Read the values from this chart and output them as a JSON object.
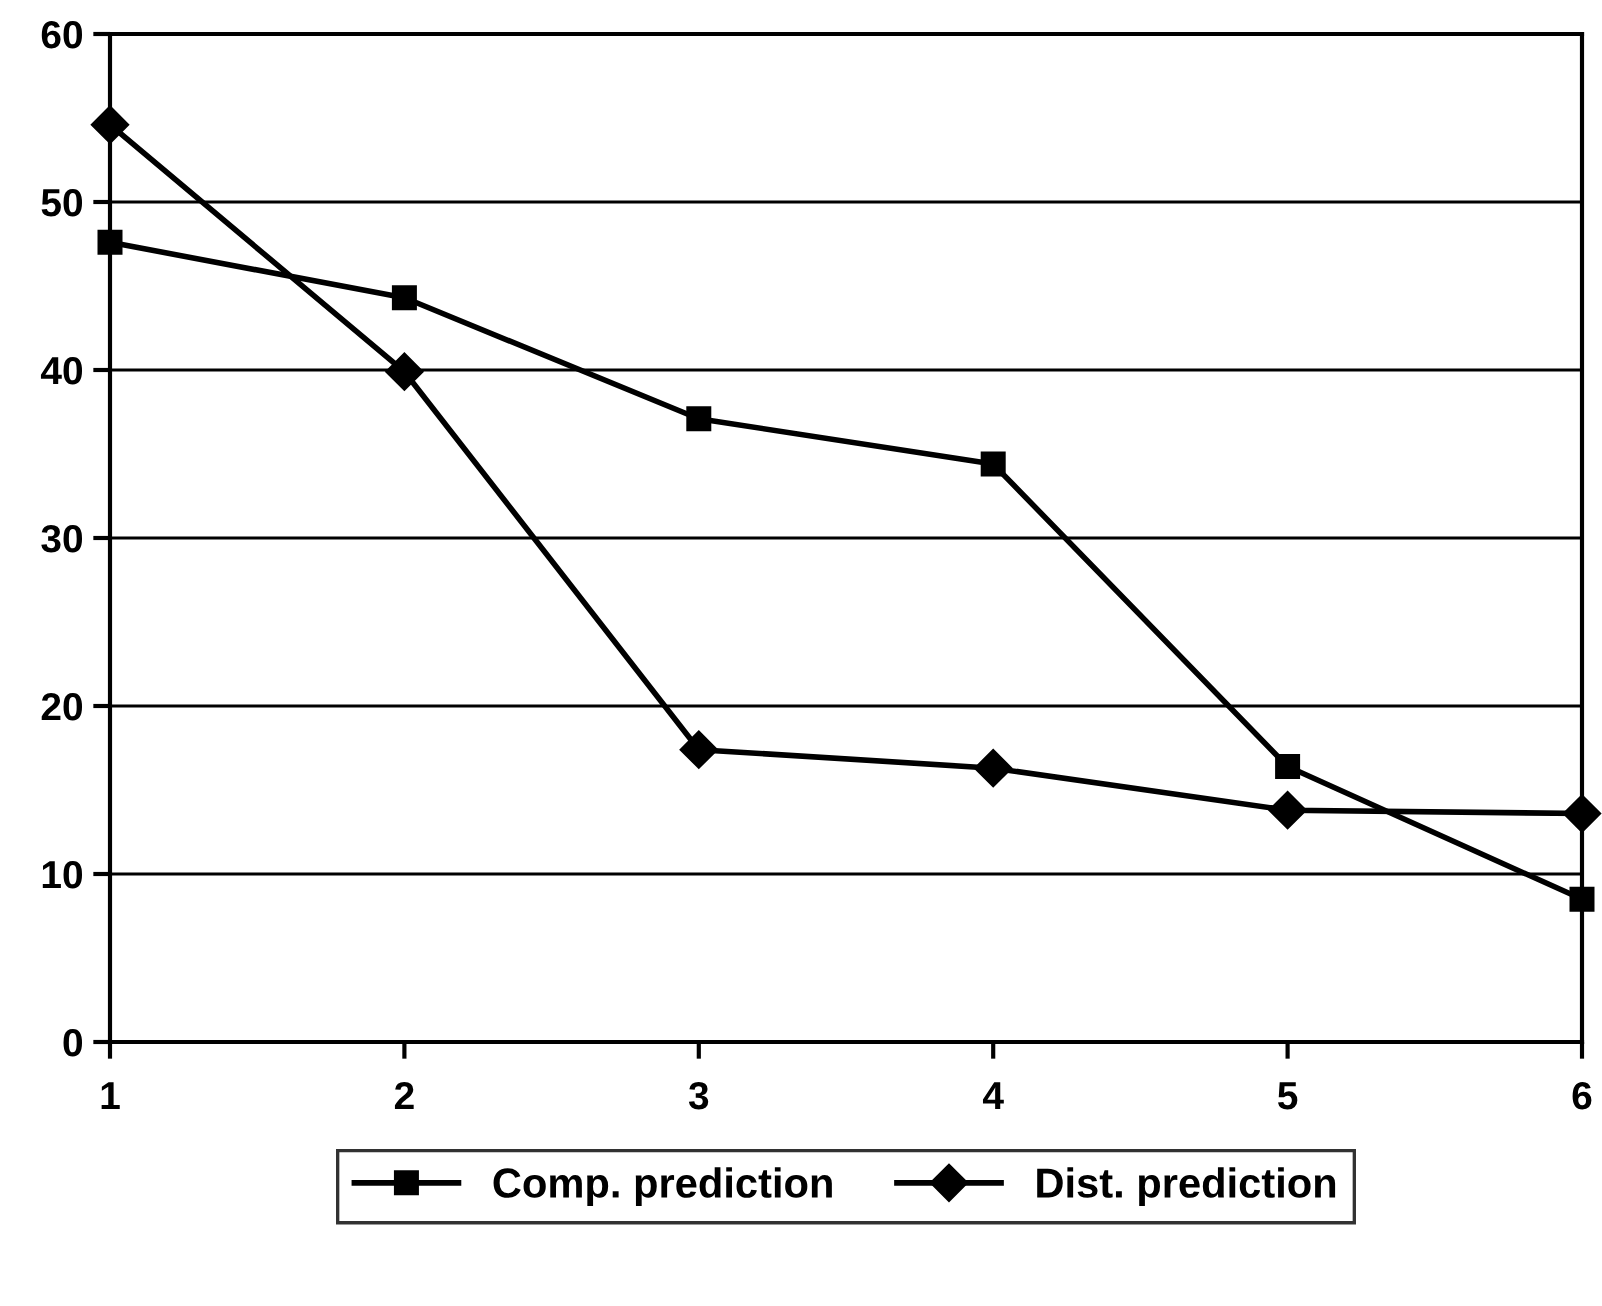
{
  "chart_data": {
    "type": "line",
    "x": [
      1,
      2,
      3,
      4,
      5,
      6
    ],
    "series": [
      {
        "name": "Comp. prediction",
        "color": "#000000",
        "marker": "square",
        "values": [
          47.6,
          44.3,
          37.1,
          34.4,
          16.4,
          8.5
        ]
      },
      {
        "name": "Dist. prediction",
        "color": "#000000",
        "marker": "diamond",
        "values": [
          54.6,
          39.9,
          17.4,
          16.3,
          13.8,
          13.6
        ]
      }
    ],
    "xlim": [
      1,
      6
    ],
    "xticks": [
      1,
      2,
      3,
      4,
      5,
      6
    ],
    "ylim": [
      0,
      60
    ],
    "yticks": [
      0,
      10,
      20,
      30,
      40,
      50,
      60
    ],
    "grid": "y",
    "legend": "bottom",
    "line_style": "solid"
  }
}
